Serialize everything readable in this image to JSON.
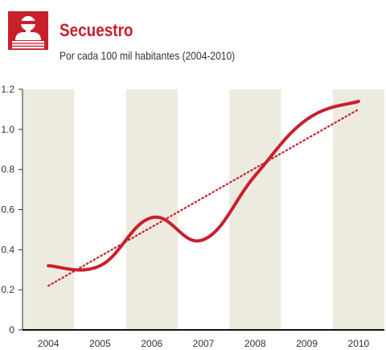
{
  "header": {
    "title": "Secuestro",
    "subtitle": "Por cada 100 mil habitantes (2004-2010)",
    "icon": "hostage-person-icon"
  },
  "colors": {
    "accent": "#c8202b",
    "band": "#edebe0",
    "axis": "#333333"
  },
  "chart_data": {
    "type": "line",
    "categories": [
      "2004",
      "2005",
      "2006",
      "2007",
      "2008",
      "2009",
      "2010"
    ],
    "x": [
      2004,
      2005,
      2006,
      2007,
      2008,
      2009,
      2010
    ],
    "series": [
      {
        "values": [
          0.32,
          0.32,
          0.56,
          0.45,
          0.77,
          1.05,
          1.14
        ],
        "style": "solid"
      },
      {
        "values": [
          0.22,
          0.36,
          0.51,
          0.66,
          0.81,
          0.95,
          1.1
        ],
        "style": "dotted",
        "role": "trend"
      }
    ],
    "yticks": [
      "0",
      "0.2",
      "0.4",
      "0.6",
      "0.8",
      "1.0",
      "1.2"
    ],
    "ylim": [
      0,
      1.2
    ],
    "grid": false,
    "background": "alternating vertical bands"
  }
}
